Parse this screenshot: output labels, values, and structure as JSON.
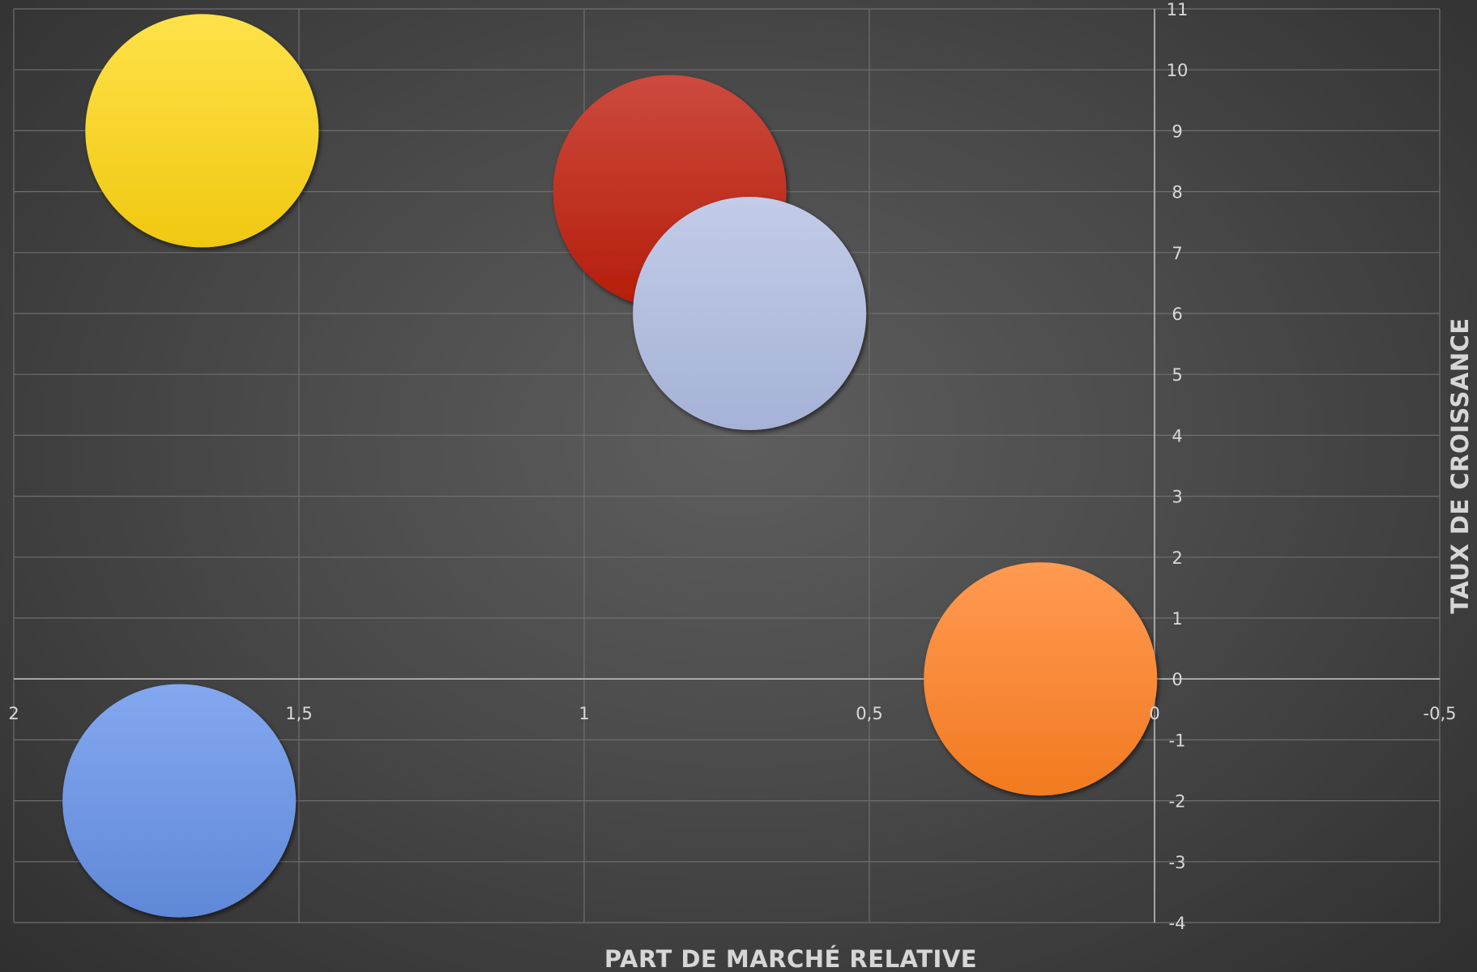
{
  "chart_data": {
    "type": "bubble",
    "xlabel": "PART DE MARCHÉ RELATIVE",
    "ylabel": "TAUX DE CROISSANCE",
    "xlim": [
      2,
      -0.5
    ],
    "ylim": [
      -4,
      11
    ],
    "x_ticks": [
      "2",
      "1,5",
      "1",
      "0,5",
      "0",
      "-0,5"
    ],
    "y_ticks": [
      "-4",
      "-3",
      "-2",
      "-1",
      "0",
      "1",
      "2",
      "3",
      "4",
      "5",
      "6",
      "7",
      "8",
      "9",
      "10",
      "11"
    ],
    "grid": true,
    "legend": "none",
    "points": [
      {
        "x": 1.67,
        "y": 9,
        "size": 1,
        "color": "#ffdc1e"
      },
      {
        "x": 0.85,
        "y": 8,
        "size": 1,
        "color": "#c8281a"
      },
      {
        "x": 0.71,
        "y": 6,
        "size": 1,
        "color": "#b4c0e0"
      },
      {
        "x": 0.2,
        "y": 0,
        "size": 1,
        "color": "#ff8a32"
      },
      {
        "x": 1.71,
        "y": -2,
        "size": 1,
        "color": "#7199e6"
      }
    ]
  }
}
